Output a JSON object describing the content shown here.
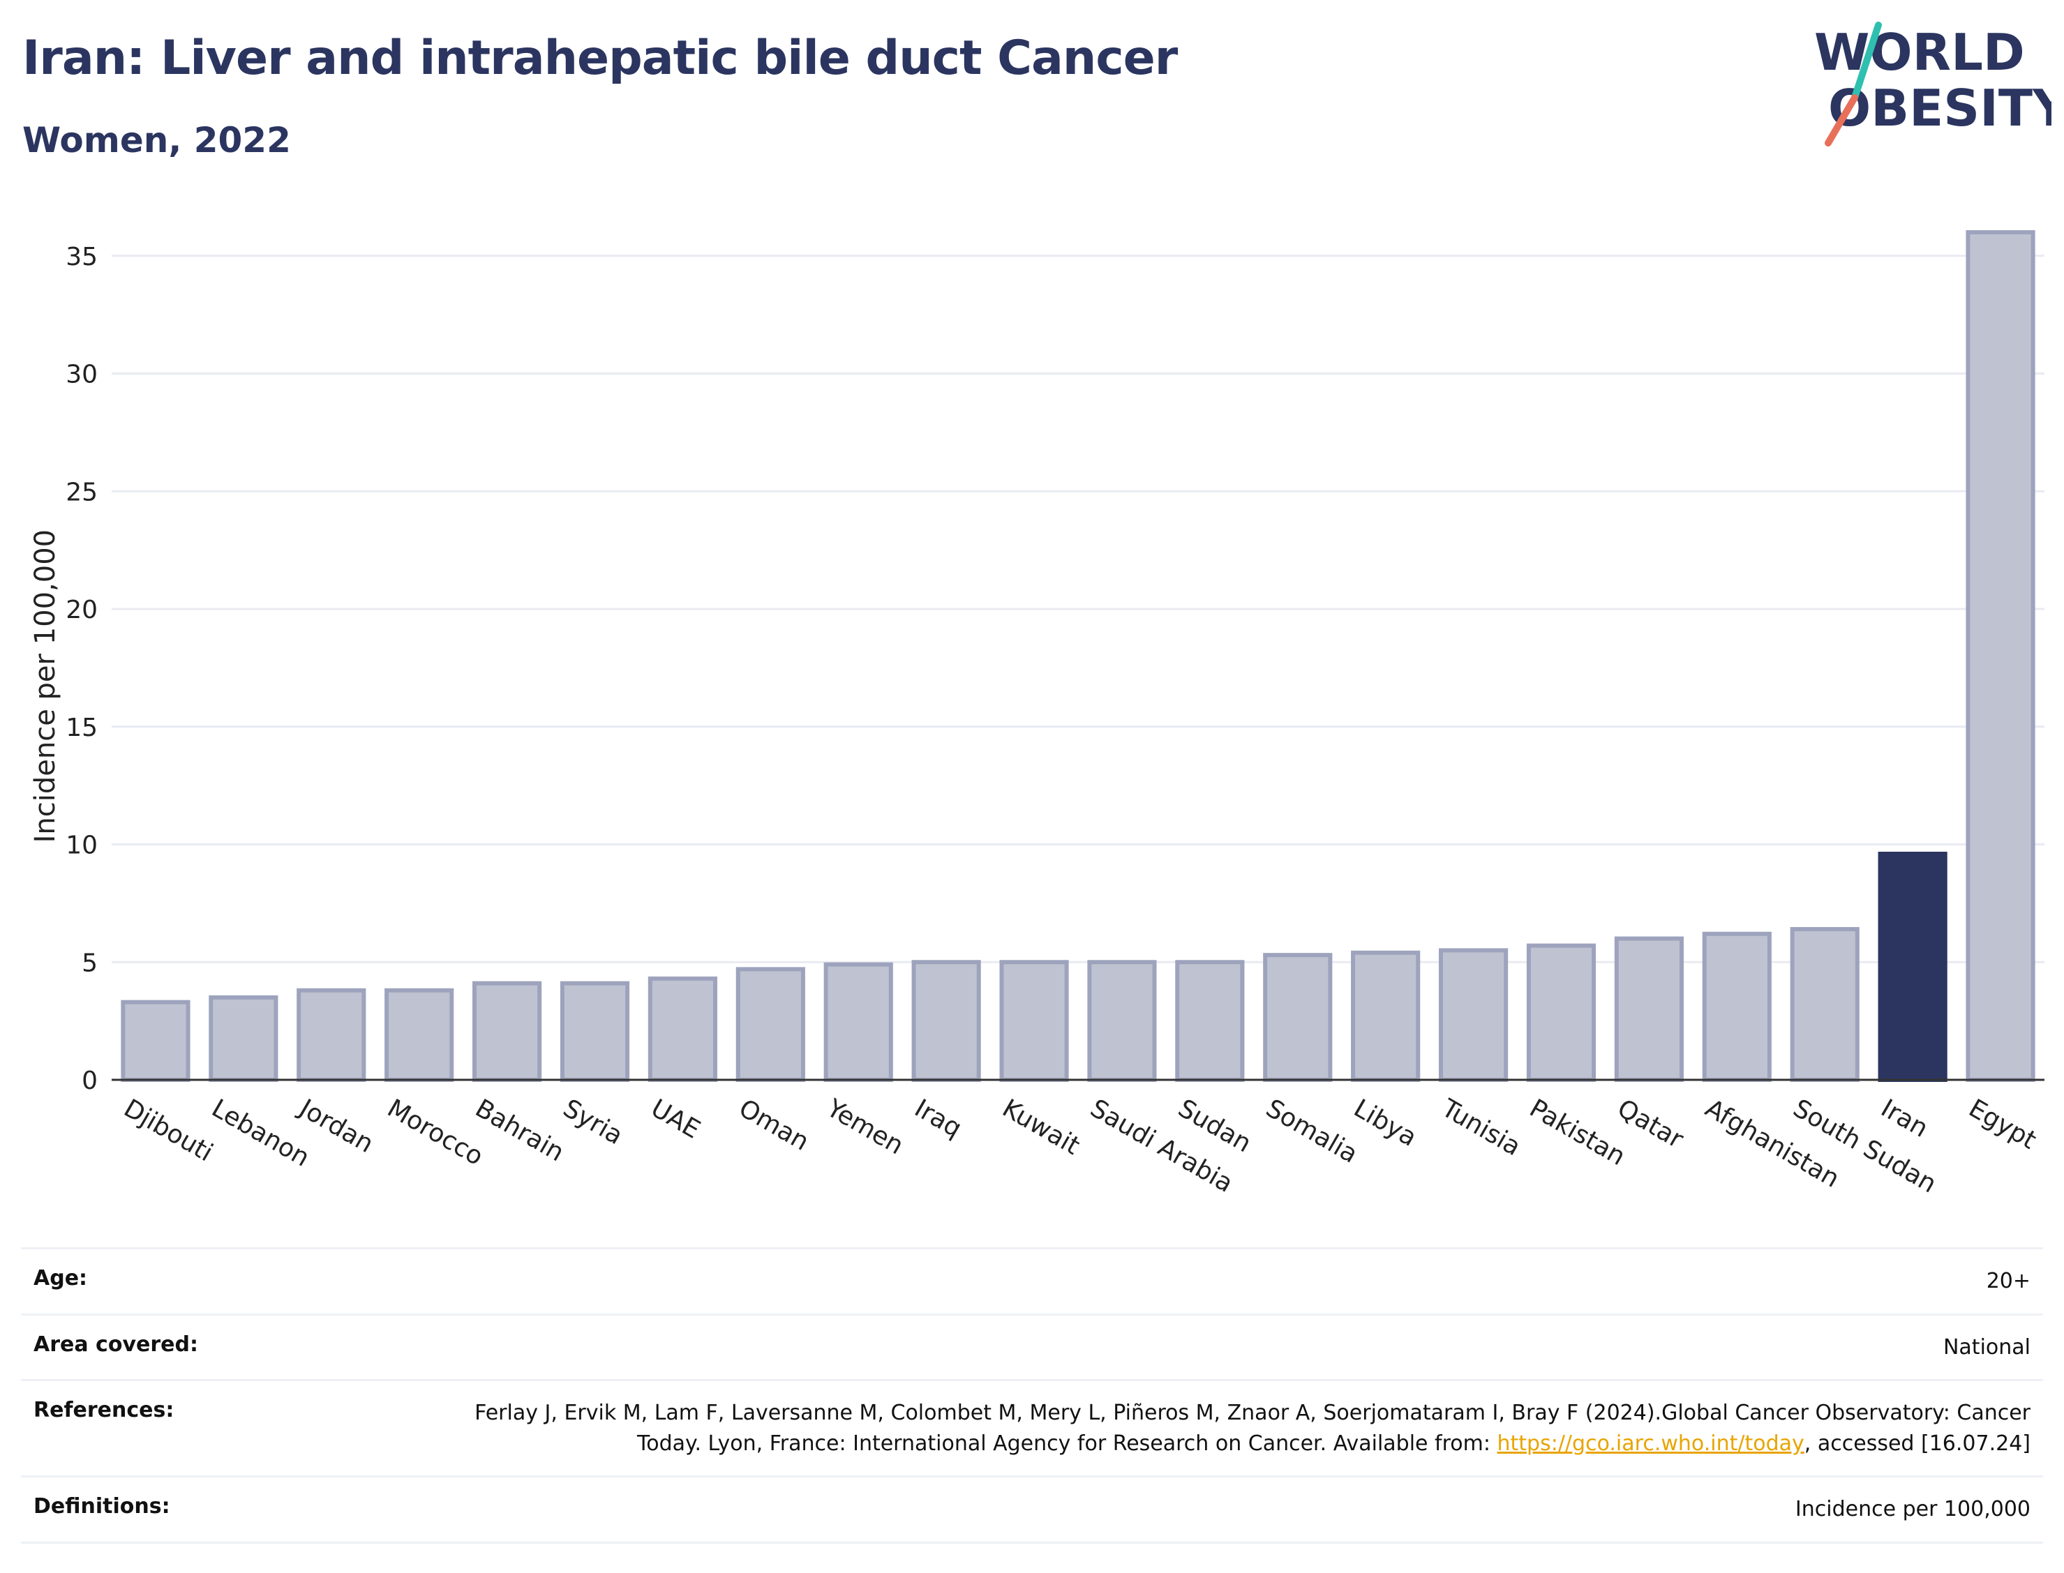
{
  "header": {
    "title": "Iran: Liver and intrahepatic bile duct Cancer",
    "subtitle": "Women, 2022"
  },
  "logo": {
    "line1": "WORLD",
    "line2": "OBESITY",
    "slash_colors": [
      "#2fbfb0",
      "#e8705a"
    ]
  },
  "chart_data": {
    "type": "bar",
    "title": "Iran: Liver and intrahepatic bile duct Cancer",
    "subtitle": "Women, 2022",
    "xlabel": "",
    "ylabel": "Incidence per 100,000",
    "ylim": [
      0,
      37
    ],
    "yticks": [
      0,
      5,
      10,
      15,
      20,
      25,
      30,
      35
    ],
    "grid": true,
    "highlight": "Iran",
    "highlight_color": "#2b3560",
    "bar_color": "#bfc3d1",
    "bar_edge_color": "#9ea3bd",
    "categories": [
      "Djibouti",
      "Lebanon",
      "Jordan",
      "Morocco",
      "Bahrain",
      "Syria",
      "UAE",
      "Oman",
      "Yemen",
      "Iraq",
      "Kuwait",
      "Saudi Arabia",
      "Sudan",
      "Somalia",
      "Libya",
      "Tunisia",
      "Pakistan",
      "Qatar",
      "Afghanistan",
      "South Sudan",
      "Iran",
      "Egypt"
    ],
    "values": [
      3.3,
      3.5,
      3.8,
      3.8,
      4.1,
      4.1,
      4.3,
      4.7,
      4.9,
      5.0,
      5.0,
      5.0,
      5.0,
      5.3,
      5.4,
      5.5,
      5.7,
      6.0,
      6.2,
      6.4,
      9.6,
      36.0
    ]
  },
  "footer": {
    "rows": [
      {
        "label": "Age:",
        "value": "20+"
      },
      {
        "label": "Area covered:",
        "value": "National"
      },
      {
        "label": "References:",
        "value_pre": "Ferlay J, Ervik M, Lam F, Laversanne M, Colombet M, Mery L, Piñeros M, Znaor A, Soerjomataram I, Bray F (2024).Global Cancer Observatory: Cancer Today. Lyon, France: International Agency for Research on Cancer. Available from: ",
        "link": "https://gco.iarc.who.int/today",
        "value_post": ", accessed [16.07.24]"
      },
      {
        "label": "Definitions:",
        "value": "Incidence per 100,000"
      }
    ]
  }
}
